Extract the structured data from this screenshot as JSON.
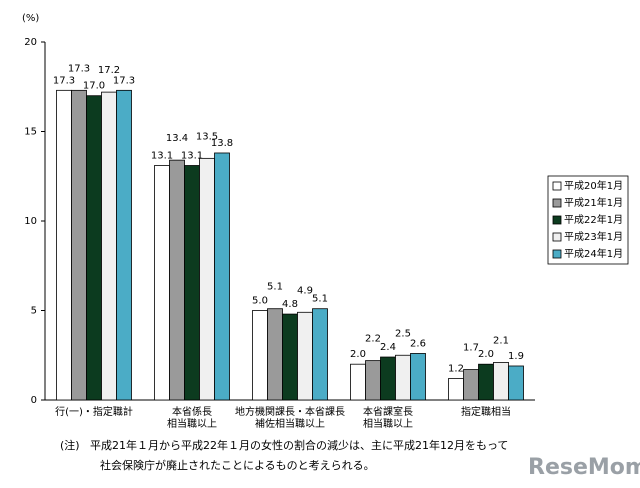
{
  "chart_data": {
    "type": "bar",
    "y_unit": "(%)",
    "categories": [
      "行(一)・指定職計",
      "本省係長\n相当職以上",
      "地方機関課長・本省課長\n補佐相当職以上",
      "本省課室長\n相当職以上",
      "指定職相当"
    ],
    "series": [
      {
        "name": "平成20年1月",
        "color": "#ffffff",
        "values": [
          17.3,
          13.1,
          5.0,
          2.0,
          1.2
        ],
        "value_labels": [
          "17.3",
          "13.1",
          "5.0",
          "2.0",
          "1.2"
        ]
      },
      {
        "name": "平成21年1月",
        "color": "#9a9a9a",
        "values": [
          17.3,
          13.4,
          5.1,
          2.2,
          1.7
        ],
        "value_labels": [
          "17.3",
          "13.4",
          "5.1",
          "2.2",
          "1.7"
        ]
      },
      {
        "name": "平成22年1月",
        "color": "#0c3b1f",
        "values": [
          17.0,
          13.1,
          4.8,
          2.4,
          2.0
        ],
        "value_labels": [
          "17.0",
          "13.1",
          "4.8",
          "2.4",
          "2.0"
        ]
      },
      {
        "name": "平成23年1月",
        "color": "#f0f0f0",
        "values": [
          17.2,
          13.5,
          4.9,
          2.5,
          2.1
        ],
        "value_labels": [
          "17.2",
          "13.5",
          "4.9",
          "2.5",
          "2.1"
        ]
      },
      {
        "name": "平成24年1月",
        "color": "#4bacc6",
        "values": [
          17.3,
          13.8,
          5.1,
          2.6,
          1.9
        ],
        "value_labels": [
          "17.3",
          "13.8",
          "5.1",
          "2.6",
          "1.9"
        ]
      }
    ],
    "ylim": [
      0,
      20
    ],
    "yticks": [
      0,
      5,
      10,
      15,
      20
    ],
    "legend": "right"
  },
  "note": {
    "label": "(注)",
    "lines": [
      "平成21年１月から平成22年１月の女性の割合の減少は、主に平成21年12月をもって",
      "社会保険庁が廃止されたことによるものと考えられる。"
    ]
  },
  "watermark": "ReseMom"
}
